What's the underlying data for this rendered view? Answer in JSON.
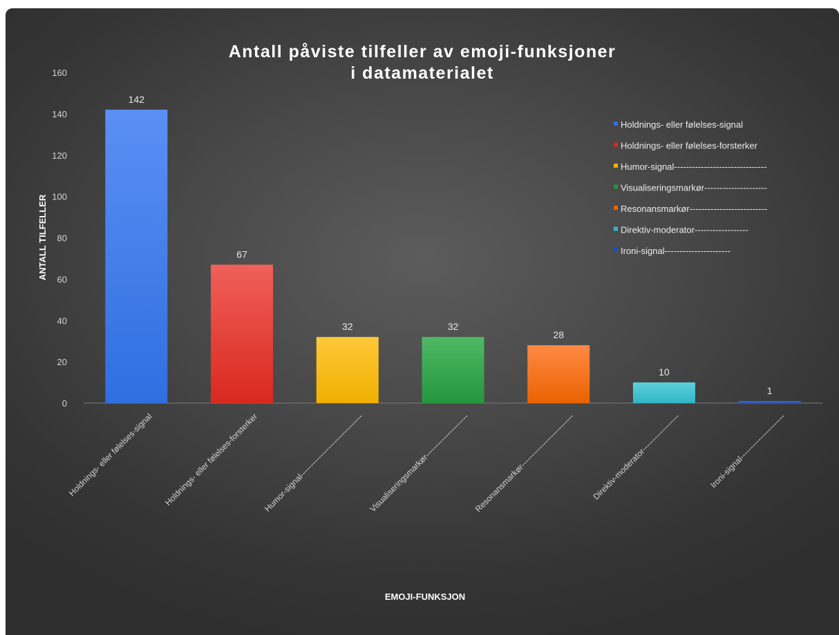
{
  "chart_data": {
    "type": "bar",
    "title_lines": [
      "Antall påviste tilfeller av emoji-funksjoner",
      "i datamaterialet"
    ],
    "xlabel": "EMOJI-FUNKSJON",
    "ylabel": "ANTALL TILFELLER",
    "ylim": [
      0,
      160
    ],
    "yticks": [
      0,
      20,
      40,
      60,
      80,
      100,
      120,
      140,
      160
    ],
    "grid": false,
    "legend_position": "right",
    "categories": [
      "Holdnings- eller følelses-signal",
      "Holdnings- eller følelses-forsterker",
      "Humor-signal-------------------------------",
      "Visualiseringsmarkør---------------------",
      "Resonansmarkør--------------------------",
      "Direktiv-moderator------------------",
      "Ironi-signal----------------------"
    ],
    "values": [
      142,
      67,
      32,
      32,
      28,
      10,
      1
    ],
    "data_labels": [
      "142",
      "67",
      "32",
      "32",
      "28",
      "10",
      "1"
    ],
    "colors": [
      [
        "#5b8ff5",
        "#2f6fe0"
      ],
      [
        "#f0605a",
        "#d9281e"
      ],
      [
        "#ffc83a",
        "#f0b000"
      ],
      [
        "#4fb865",
        "#24963c"
      ],
      [
        "#ff8a45",
        "#ea6200"
      ],
      [
        "#5fcfdb",
        "#31b7c6"
      ],
      [
        "#3f6fd9",
        "#1a4fc0"
      ]
    ],
    "legend": [
      "Holdnings- eller følelses-signal",
      "Holdnings- eller følelses-forsterker",
      "Humor-signal-------------------------------",
      "Visualiseringsmarkør---------------------",
      "Resonansmarkør--------------------------",
      "Direktiv-moderator------------------",
      "Ironi-signal----------------------"
    ]
  }
}
